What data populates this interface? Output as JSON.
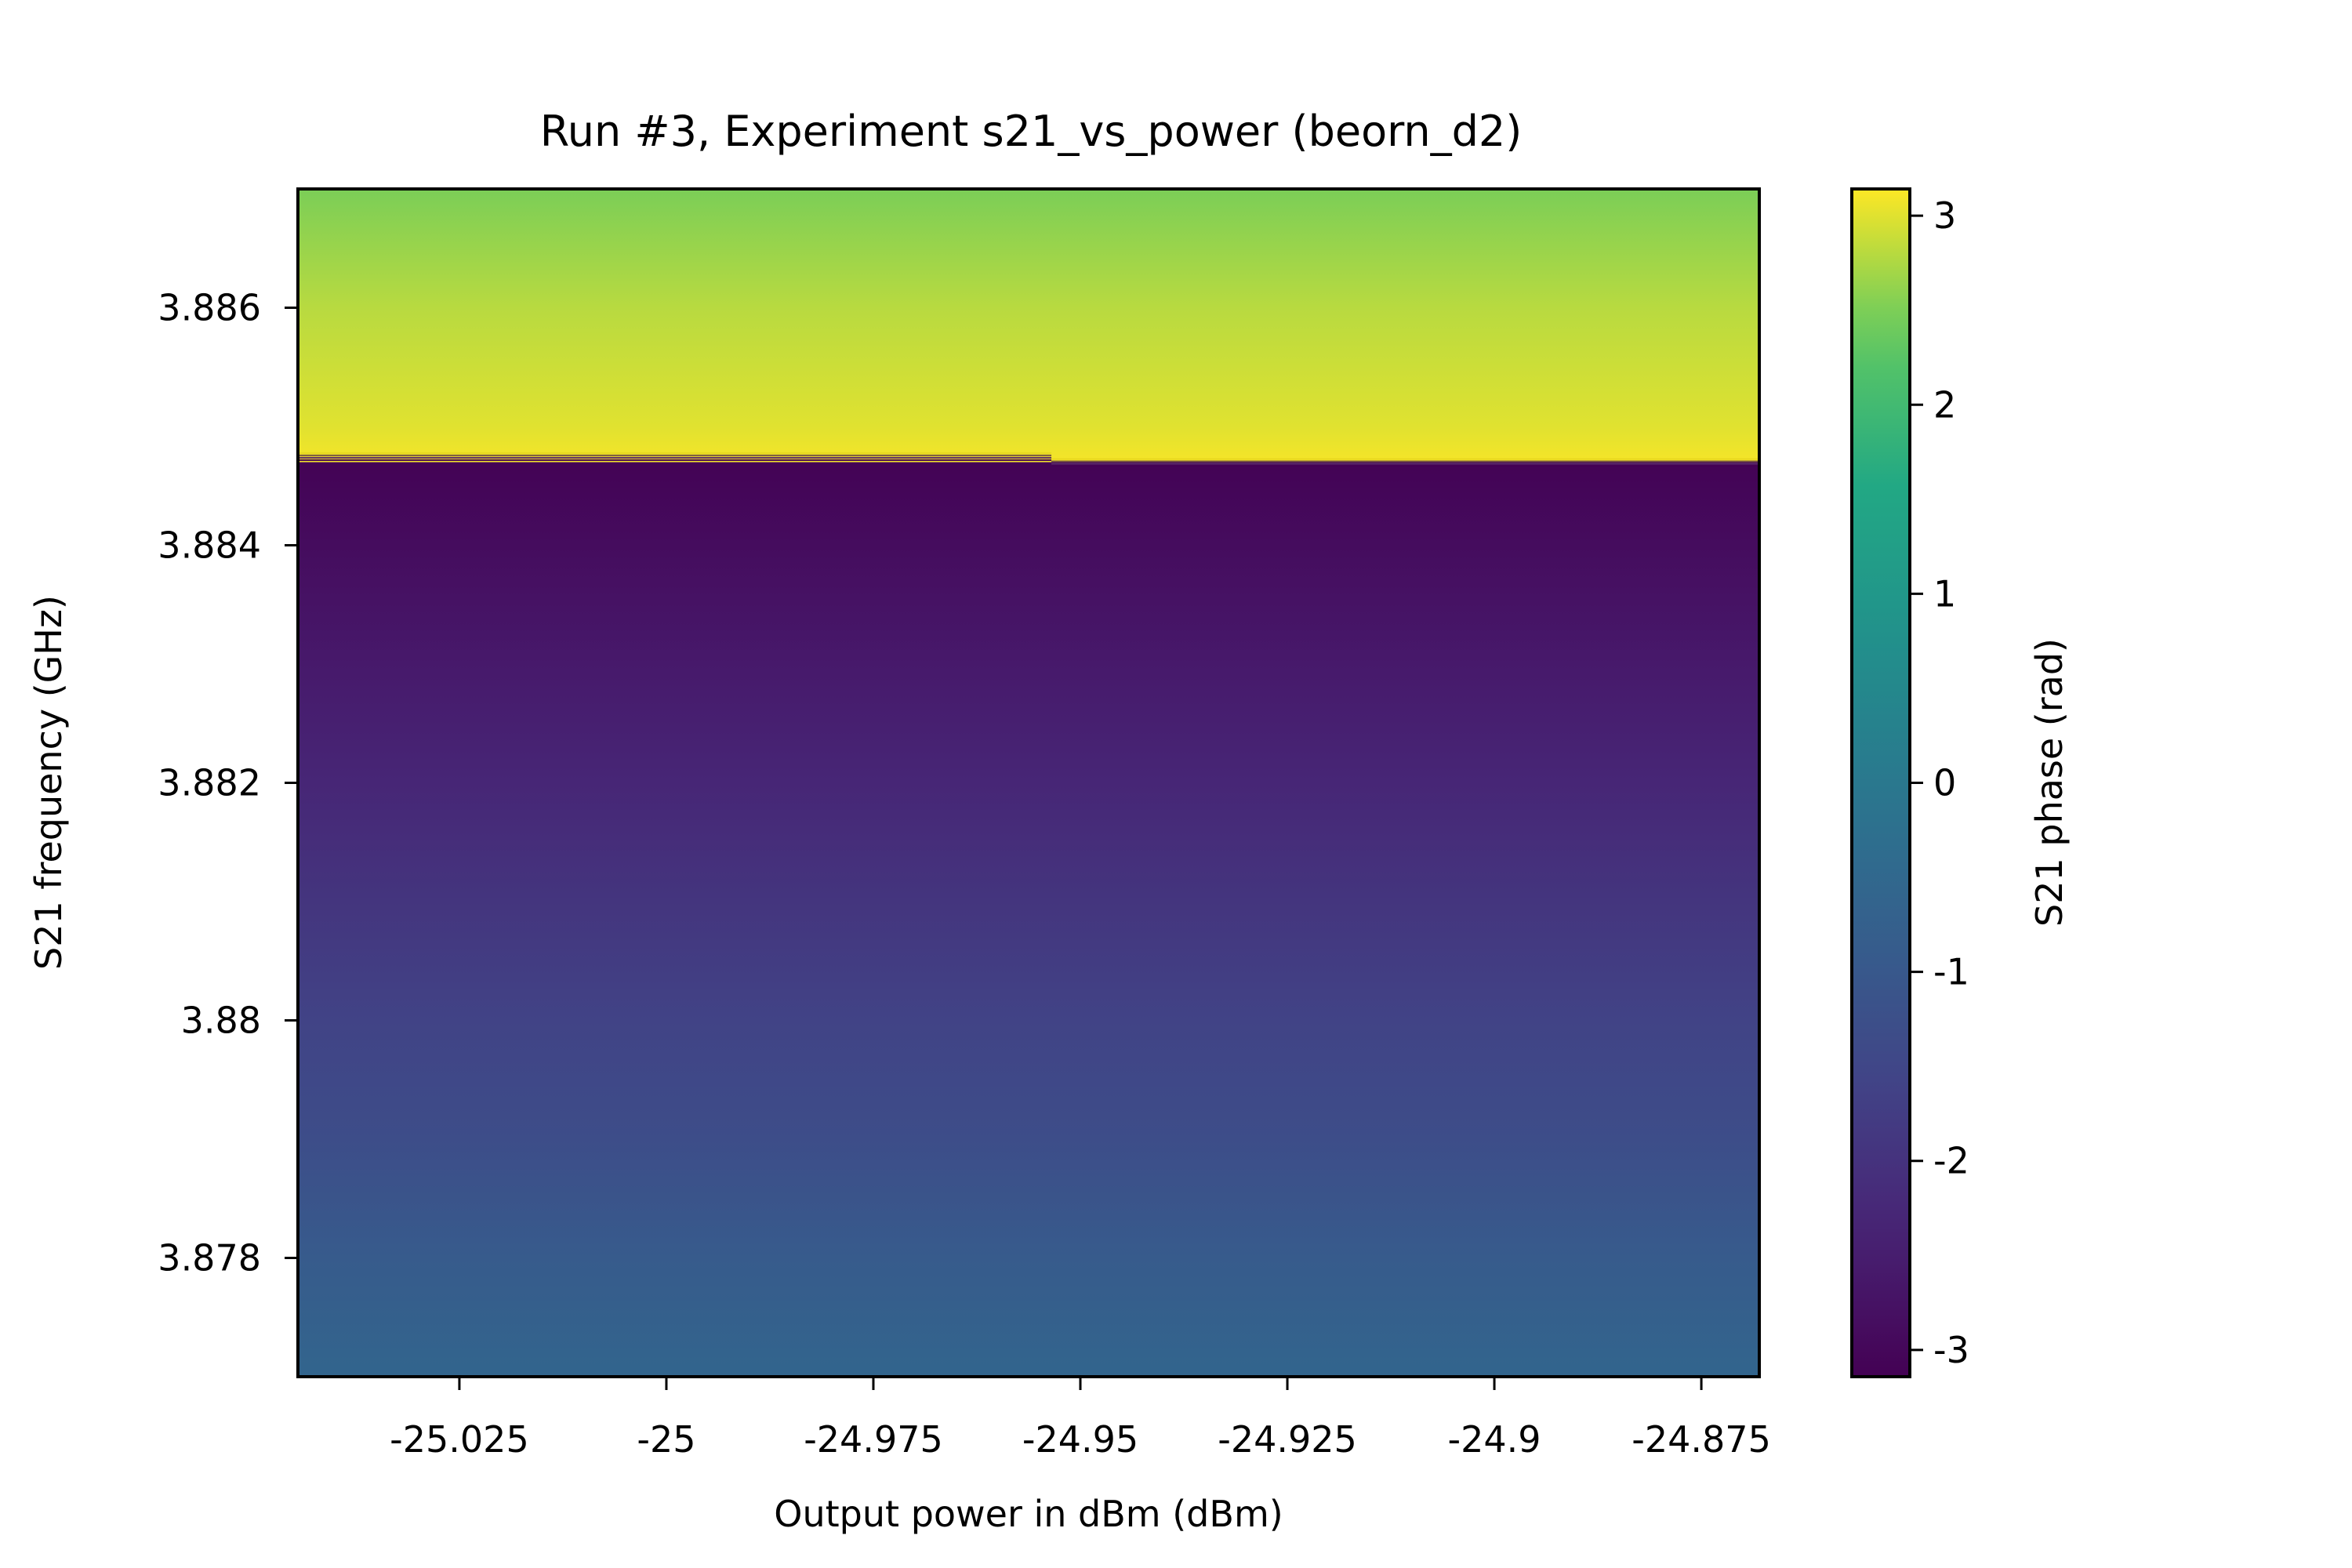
{
  "chart_data": {
    "type": "heatmap",
    "title": "Run #3, Experiment s21_vs_power (beorn_d2)",
    "xlabel": "Output power in dBm (dBm)",
    "ylabel": "S21 frequency (GHz)",
    "colorbar_label": "S21 phase (rad)",
    "colormap": "viridis",
    "xlim": [
      -25.0445,
      -24.868
    ],
    "ylim": [
      3.877,
      3.887
    ],
    "clim": [
      -3.1416,
      3.1416
    ],
    "x_ticks": [
      {
        "value": -25.025,
        "label": "-25.025"
      },
      {
        "value": -25.0,
        "label": "-25"
      },
      {
        "value": -24.975,
        "label": "-24.975"
      },
      {
        "value": -24.95,
        "label": "-24.95"
      },
      {
        "value": -24.925,
        "label": "-24.925"
      },
      {
        "value": -24.9,
        "label": "-24.9"
      },
      {
        "value": -24.875,
        "label": "-24.875"
      }
    ],
    "y_ticks": [
      {
        "value": 3.878,
        "label": "3.878"
      },
      {
        "value": 3.88,
        "label": "3.88"
      },
      {
        "value": 3.882,
        "label": "3.882"
      },
      {
        "value": 3.884,
        "label": "3.884"
      },
      {
        "value": 3.886,
        "label": "3.886"
      }
    ],
    "colorbar_ticks": [
      {
        "value": -3,
        "label": "-3"
      },
      {
        "value": -2,
        "label": "-2"
      },
      {
        "value": -1,
        "label": "-1"
      },
      {
        "value": 0,
        "label": "0"
      },
      {
        "value": 1,
        "label": "1"
      },
      {
        "value": 2,
        "label": "2"
      },
      {
        "value": 3,
        "label": "3"
      }
    ],
    "phase_profile": {
      "description_of_data": "phase vs frequency, identical across power",
      "frequency_GHz": [
        3.877,
        3.878,
        3.879,
        3.88,
        3.881,
        3.882,
        3.883,
        3.884,
        3.88465,
        3.88468,
        3.885,
        3.886,
        3.887
      ],
      "phase_rad": [
        -0.6,
        -0.9,
        -1.3,
        -1.6,
        -1.95,
        -2.3,
        -2.6,
        -2.9,
        -3.1,
        3.1,
        3.0,
        2.8,
        2.5
      ]
    },
    "wrap_frequency_GHz": {
      "power_below": -24.9535,
      "left_segment": 3.88475,
      "right_segment": 3.8847
    }
  }
}
